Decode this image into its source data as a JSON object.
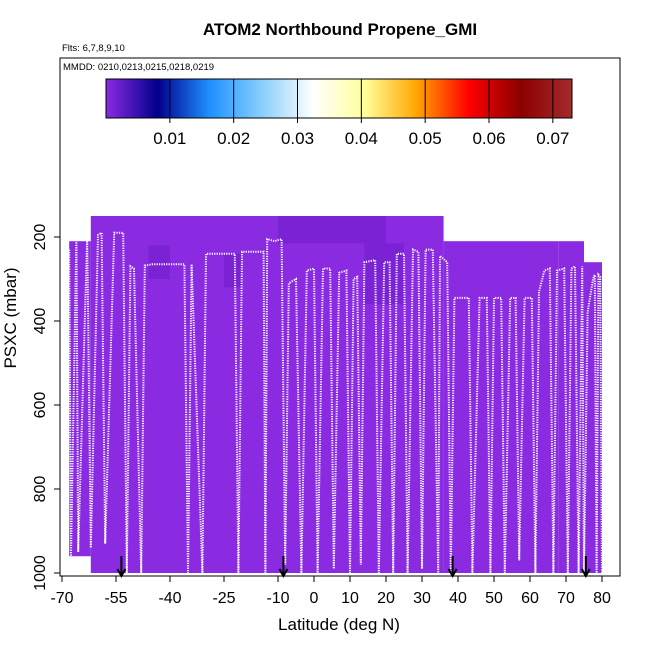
{
  "chart_data": {
    "type": "heatmap",
    "title": "ATOM2 Northbound Propene_GMI",
    "subtitle_flights": "Flts: 6,7,8,9,10",
    "subtitle_dates": "MMDD: 0210,0213,0215,0218,0219",
    "xlabel": "Latitude (deg N)",
    "ylabel": "PSXC (mbar)",
    "xlim": [
      -70,
      80
    ],
    "ylim": [
      1000,
      50
    ],
    "y_reversed": true,
    "x_ticks": [
      -70,
      -55,
      -40,
      -25,
      -10,
      0,
      10,
      20,
      30,
      40,
      50,
      60,
      70,
      80
    ],
    "x_tick_labels": [
      "-70",
      "-55",
      "-40",
      "-25",
      "-10",
      "0",
      "10",
      "20",
      "30",
      "40",
      "50",
      "60",
      "70",
      "80"
    ],
    "y_ticks": [
      200,
      400,
      600,
      800,
      1000
    ],
    "y_tick_labels": [
      "200",
      "400",
      "600",
      "800",
      "1000"
    ],
    "grid": false,
    "colorbar": {
      "min": 0.0,
      "max": 0.073,
      "ticks": [
        0.01,
        0.02,
        0.03,
        0.04,
        0.05,
        0.06,
        0.07
      ],
      "tick_labels": [
        "0.01",
        "0.02",
        "0.03",
        "0.04",
        "0.05",
        "0.06",
        "0.07"
      ],
      "colors": [
        "#8a2be2",
        "#00008b",
        "#1e90ff",
        "#87cefa",
        "#ffffff",
        "#ffff99",
        "#ffa500",
        "#ff0000",
        "#8b0000",
        "#a52a2a"
      ]
    },
    "field_color": "#8a2be2",
    "field_segments": [
      {
        "name": "flight-6",
        "lat_range": [
          -68,
          -62
        ],
        "p_range": [
          210,
          960
        ]
      },
      {
        "name": "flight-7",
        "lat_range": [
          -62,
          36
        ],
        "p_range": [
          150,
          1000
        ]
      },
      {
        "name": "flight-8",
        "lat_range": [
          36,
          68
        ],
        "p_range": [
          210,
          1000
        ]
      },
      {
        "name": "flight-9",
        "lat_range": [
          68,
          75
        ],
        "p_range": [
          210,
          1000
        ]
      },
      {
        "name": "flight-10",
        "lat_range": [
          75,
          80
        ],
        "p_range": [
          260,
          1000
        ]
      }
    ],
    "darker_patches": [
      {
        "lat_range": [
          -10,
          20
        ],
        "p_range": [
          150,
          215
        ],
        "value": 0.003
      },
      {
        "lat_range": [
          14,
          25
        ],
        "p_range": [
          215,
          360
        ],
        "value": 0.004
      },
      {
        "lat_range": [
          -46,
          -40
        ],
        "p_range": [
          220,
          300
        ],
        "value": 0.002
      },
      {
        "lat_range": [
          -25,
          -20
        ],
        "p_range": [
          240,
          320
        ],
        "value": 0.002
      }
    ],
    "flight_track": [
      [
        -68,
        230
      ],
      [
        -67.5,
        960
      ],
      [
        -66,
        200
      ],
      [
        -65.5,
        950
      ],
      [
        -63,
        200
      ],
      [
        -62,
        940
      ],
      [
        -60,
        195
      ],
      [
        -59,
        190
      ],
      [
        -58,
        930
      ],
      [
        -55.5,
        190
      ],
      [
        -53,
        190
      ],
      [
        -52,
        1000
      ],
      [
        -51,
        270
      ],
      [
        -50,
        275
      ],
      [
        -48,
        1000
      ],
      [
        -47,
        268
      ],
      [
        -45,
        265
      ],
      [
        -36,
        265
      ],
      [
        -35,
        1000
      ],
      [
        -34,
        265
      ],
      [
        -31,
        1000
      ],
      [
        -30,
        240
      ],
      [
        -22,
        240
      ],
      [
        -21,
        1000
      ],
      [
        -20,
        235
      ],
      [
        -14,
        235
      ],
      [
        -13.5,
        1000
      ],
      [
        -13,
        205
      ],
      [
        -11,
        210
      ],
      [
        -9,
        205
      ],
      [
        -8,
        980
      ],
      [
        -7,
        310
      ],
      [
        -5,
        300
      ],
      [
        -3.5,
        1000
      ],
      [
        -2,
        280
      ],
      [
        0,
        275
      ],
      [
        1,
        1000
      ],
      [
        2.5,
        275
      ],
      [
        4.5,
        275
      ],
      [
        5.5,
        990
      ],
      [
        7,
        285
      ],
      [
        9,
        280
      ],
      [
        10,
        1000
      ],
      [
        11,
        300
      ],
      [
        12,
        295
      ],
      [
        13,
        980
      ],
      [
        14,
        260
      ],
      [
        17,
        255
      ],
      [
        18,
        1000
      ],
      [
        19.5,
        260
      ],
      [
        21,
        260
      ],
      [
        22,
        1000
      ],
      [
        23,
        240
      ],
      [
        25,
        240
      ],
      [
        26,
        1000
      ],
      [
        27.5,
        230
      ],
      [
        29,
        235
      ],
      [
        30,
        990
      ],
      [
        31,
        230
      ],
      [
        33,
        230
      ],
      [
        34.5,
        1000
      ],
      [
        35,
        245
      ],
      [
        37,
        260
      ],
      [
        38,
        1000
      ],
      [
        39,
        345
      ],
      [
        43,
        345
      ],
      [
        44,
        1000
      ],
      [
        46,
        345
      ],
      [
        48,
        345
      ],
      [
        49,
        1000
      ],
      [
        50,
        345
      ],
      [
        52,
        345
      ],
      [
        53,
        1000
      ],
      [
        54.5,
        345
      ],
      [
        56,
        345
      ],
      [
        57,
        970
      ],
      [
        58.5,
        345
      ],
      [
        60.5,
        345
      ],
      [
        61.5,
        1000
      ],
      [
        62.5,
        330
      ],
      [
        64,
        280
      ],
      [
        65.5,
        275
      ],
      [
        66.5,
        1000
      ],
      [
        67.5,
        280
      ],
      [
        69.5,
        275
      ],
      [
        70.5,
        1000
      ],
      [
        71.5,
        275
      ],
      [
        72.5,
        270
      ],
      [
        73.5,
        1000
      ],
      [
        74.5,
        270
      ],
      [
        75,
        1000
      ],
      [
        76,
        380
      ],
      [
        77.5,
        300
      ],
      [
        78,
        290
      ],
      [
        78.5,
        1000
      ],
      [
        79,
        290
      ],
      [
        79.5,
        295
      ],
      [
        80,
        1000
      ]
    ],
    "arrows_lat": [
      -53.5,
      -8.5,
      38.5,
      75.5
    ]
  }
}
